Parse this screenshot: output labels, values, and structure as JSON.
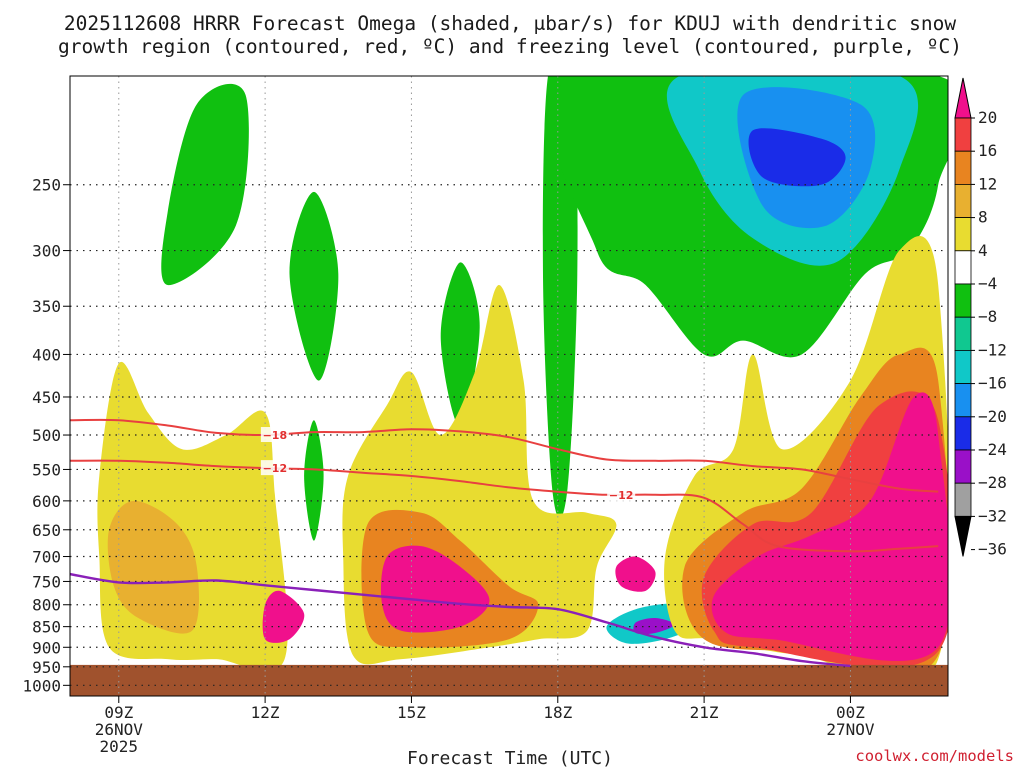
{
  "title": {
    "line1": "2025112608 HRRR Forecast Omega (shaded, μbar/s) for KDUJ with dendritic snow",
    "line2": "growth region (contoured, red, ºC) and freezing level (contoured, purple, ºC)"
  },
  "credit": "coolwx.com/models",
  "chart_data": {
    "type": "time-height cross section",
    "title": "2025112608 HRRR Forecast Omega (shaded, μbar/s) for KDUJ",
    "xlabel": "Forecast Time (UTC)",
    "ylabel": "Pressure (hPa)",
    "x_ticks": [
      {
        "t": 9,
        "lines": [
          "09Z",
          "26NOV",
          "2025"
        ]
      },
      {
        "t": 12,
        "lines": [
          "12Z"
        ]
      },
      {
        "t": 15,
        "lines": [
          "15Z"
        ]
      },
      {
        "t": 18,
        "lines": [
          "18Z"
        ]
      },
      {
        "t": 21,
        "lines": [
          "21Z"
        ]
      },
      {
        "t": 24,
        "lines": [
          "00Z",
          "27NOV"
        ]
      }
    ],
    "xlim": [
      8,
      26
    ],
    "y_ticks": [
      250,
      300,
      350,
      400,
      450,
      500,
      550,
      600,
      650,
      700,
      750,
      800,
      850,
      900,
      950,
      1000
    ],
    "ylim": [
      1030,
      185
    ],
    "ground_pressure": 945,
    "colorbar": {
      "levels": [
        -36,
        -32,
        -28,
        -24,
        -20,
        -16,
        -12,
        -8,
        -4,
        4,
        8,
        12,
        16,
        20
      ],
      "tick_labels": [
        "20",
        "16",
        "12",
        "8",
        "4",
        "−4",
        "−8",
        "−12",
        "−16",
        "−20",
        "−24",
        "−28",
        "−32",
        "−36"
      ],
      "colors": [
        "#000000",
        "#a0a0a0",
        "#9a10c8",
        "#1a2ce8",
        "#1890f0",
        "#10c8c8",
        "#10c890",
        "#10c010",
        "#ffffff",
        "#e8dc30",
        "#e8b030",
        "#e88420",
        "#f04040",
        "#f0108c"
      ]
    },
    "omega_regions": [
      {
        "name": "upper-ascent-1",
        "value": -6,
        "points": [
          [
            10.0,
            270
          ],
          [
            10.6,
            200
          ],
          [
            11.6,
            195
          ],
          [
            11.4,
            280
          ],
          [
            10.0,
            330
          ]
        ]
      },
      {
        "name": "upper-ascent-2",
        "value": -6,
        "points": [
          [
            12.5,
            320
          ],
          [
            13.0,
            255
          ],
          [
            13.5,
            320
          ],
          [
            13.1,
            430
          ]
        ]
      },
      {
        "name": "ascent-column-3",
        "value": -6,
        "points": [
          [
            13.0,
            480
          ],
          [
            13.2,
            560
          ],
          [
            13.0,
            670
          ],
          [
            12.8,
            560
          ]
        ]
      },
      {
        "name": "ascent-column-4",
        "value": -6,
        "points": [
          [
            15.6,
            380
          ],
          [
            16.0,
            310
          ],
          [
            16.4,
            370
          ],
          [
            16.0,
            490
          ]
        ]
      },
      {
        "name": "ascent-column-5",
        "value": -6,
        "points": [
          [
            17.7,
            330
          ],
          [
            17.8,
            185
          ],
          [
            18.3,
            185
          ],
          [
            18.4,
            320
          ],
          [
            18.2,
            580
          ],
          [
            17.9,
            590
          ]
        ]
      },
      {
        "name": "upper-green",
        "value": -6,
        "points": [
          [
            18.3,
            185
          ],
          [
            25.8,
            185
          ],
          [
            25.8,
            250
          ],
          [
            25.2,
            300
          ],
          [
            24.3,
            320
          ],
          [
            23.0,
            400
          ],
          [
            21.8,
            385
          ],
          [
            21.0,
            400
          ],
          [
            19.8,
            330
          ],
          [
            18.8,
            300
          ]
        ]
      },
      {
        "name": "upper-teal",
        "value": -14,
        "points": [
          [
            20.5,
            185
          ],
          [
            25.0,
            185
          ],
          [
            25.0,
            240
          ],
          [
            23.7,
            310
          ],
          [
            22.0,
            290
          ],
          [
            20.9,
            240
          ]
        ]
      },
      {
        "name": "upper-blue",
        "value": -18,
        "points": [
          [
            21.8,
            195
          ],
          [
            24.2,
            200
          ],
          [
            24.4,
            240
          ],
          [
            23.5,
            280
          ],
          [
            22.2,
            265
          ]
        ]
      },
      {
        "name": "upper-core",
        "value": -22,
        "points": [
          [
            22.0,
            215
          ],
          [
            23.4,
            220
          ],
          [
            23.9,
            232
          ],
          [
            23.4,
            250
          ],
          [
            22.2,
            245
          ]
        ]
      },
      {
        "name": "lower-ascent-ring",
        "value": -10,
        "points": [
          [
            10.5,
            720
          ],
          [
            10.8,
            660
          ],
          [
            11.4,
            665
          ],
          [
            11.6,
            760
          ],
          [
            11.5,
            850
          ],
          [
            11.0,
            910
          ],
          [
            10.5,
            860
          ]
        ]
      },
      {
        "name": "lower-ascent-core",
        "value": -34,
        "points": [
          [
            10.7,
            740
          ],
          [
            11.0,
            700
          ],
          [
            11.3,
            710
          ],
          [
            11.4,
            790
          ],
          [
            11.0,
            860
          ],
          [
            10.7,
            820
          ]
        ]
      },
      {
        "name": "lower-ascent-2",
        "value": -14,
        "points": [
          [
            19.0,
            850
          ],
          [
            19.6,
            810
          ],
          [
            20.5,
            800
          ],
          [
            20.7,
            850
          ],
          [
            20.2,
            880
          ],
          [
            19.4,
            890
          ]
        ]
      },
      {
        "name": "lower-ascent-2-core",
        "value": -26,
        "points": [
          [
            19.6,
            840
          ],
          [
            20.0,
            830
          ],
          [
            20.4,
            845
          ],
          [
            20.0,
            865
          ],
          [
            19.6,
            865
          ]
        ]
      },
      {
        "name": "descent-yellow-west",
        "value": 5,
        "points": [
          [
            8.6,
            560
          ],
          [
            9.0,
            410
          ],
          [
            9.6,
            470
          ],
          [
            10.3,
            520
          ],
          [
            11.2,
            500
          ],
          [
            12.0,
            470
          ],
          [
            12.2,
            590
          ],
          [
            12.4,
            930
          ],
          [
            11.0,
            930
          ],
          [
            10.0,
            930
          ],
          [
            8.8,
            900
          ],
          [
            8.6,
            700
          ]
        ]
      },
      {
        "name": "descent-orange-west",
        "value": 10,
        "points": [
          [
            8.8,
            650
          ],
          [
            9.3,
            600
          ],
          [
            10.2,
            640
          ],
          [
            10.6,
            720
          ],
          [
            10.5,
            860
          ],
          [
            9.4,
            830
          ],
          [
            8.9,
            760
          ]
        ]
      },
      {
        "name": "descent-magenta-west",
        "value": 20,
        "points": [
          [
            12.0,
            800
          ],
          [
            12.3,
            770
          ],
          [
            12.8,
            820
          ],
          [
            12.5,
            880
          ],
          [
            12.0,
            880
          ]
        ]
      },
      {
        "name": "descent-yellow-center",
        "value": 5,
        "points": [
          [
            13.7,
            560
          ],
          [
            14.5,
            460
          ],
          [
            15.0,
            420
          ],
          [
            15.6,
            500
          ],
          [
            16.3,
            420
          ],
          [
            16.8,
            330
          ],
          [
            17.3,
            430
          ],
          [
            17.5,
            600
          ],
          [
            18.6,
            620
          ],
          [
            19.2,
            640
          ],
          [
            18.8,
            720
          ],
          [
            18.6,
            860
          ],
          [
            17.6,
            880
          ],
          [
            16.6,
            900
          ],
          [
            14.8,
            930
          ],
          [
            13.8,
            920
          ],
          [
            13.6,
            700
          ]
        ]
      },
      {
        "name": "descent-orange-center",
        "value": 12,
        "points": [
          [
            14.1,
            640
          ],
          [
            15.2,
            620
          ],
          [
            16.0,
            670
          ],
          [
            17.0,
            760
          ],
          [
            17.6,
            800
          ],
          [
            17.0,
            880
          ],
          [
            15.0,
            900
          ],
          [
            14.1,
            860
          ]
        ]
      },
      {
        "name": "descent-magenta-center",
        "value": 20,
        "points": [
          [
            14.5,
            700
          ],
          [
            15.2,
            680
          ],
          [
            16.0,
            720
          ],
          [
            16.6,
            790
          ],
          [
            16.0,
            850
          ],
          [
            14.8,
            860
          ],
          [
            14.4,
            800
          ]
        ]
      },
      {
        "name": "descent-yellow-east",
        "value": 5,
        "points": [
          [
            20.2,
            700
          ],
          [
            20.8,
            560
          ],
          [
            21.6,
            520
          ],
          [
            22.0,
            400
          ],
          [
            22.6,
            520
          ],
          [
            24.0,
            430
          ],
          [
            25.0,
            300
          ],
          [
            25.8,
            330
          ],
          [
            25.8,
            930
          ],
          [
            23.0,
            920
          ],
          [
            21.2,
            880
          ],
          [
            20.4,
            860
          ]
        ]
      },
      {
        "name": "descent-orange-east",
        "value": 12,
        "points": [
          [
            20.6,
            720
          ],
          [
            21.8,
            620
          ],
          [
            23.0,
            580
          ],
          [
            24.2,
            450
          ],
          [
            25.0,
            400
          ],
          [
            25.8,
            430
          ],
          [
            25.8,
            920
          ],
          [
            23.0,
            910
          ],
          [
            21.0,
            880
          ]
        ]
      },
      {
        "name": "descent-red-east",
        "value": 16,
        "points": [
          [
            21.0,
            740
          ],
          [
            22.0,
            640
          ],
          [
            23.2,
            620
          ],
          [
            24.6,
            460
          ],
          [
            25.8,
            480
          ],
          [
            25.8,
            910
          ],
          [
            22.0,
            900
          ],
          [
            21.2,
            860
          ]
        ]
      },
      {
        "name": "descent-magenta-east",
        "value": 20,
        "points": [
          [
            21.2,
            780
          ],
          [
            22.1,
            700
          ],
          [
            23.2,
            660
          ],
          [
            24.4,
            600
          ],
          [
            25.3,
            450
          ],
          [
            25.8,
            500
          ],
          [
            25.8,
            900
          ],
          [
            22.4,
            880
          ],
          [
            21.4,
            860
          ]
        ]
      },
      {
        "name": "descent-magenta-east-2",
        "value": 20,
        "points": [
          [
            19.2,
            720
          ],
          [
            19.6,
            700
          ],
          [
            20.0,
            730
          ],
          [
            19.8,
            770
          ],
          [
            19.3,
            760
          ]
        ]
      }
    ],
    "contours": [
      {
        "name": "dgz-top",
        "label": "−18",
        "color": "#e84040",
        "label_at": 12.2,
        "points": [
          [
            8,
            480
          ],
          [
            9.0,
            480
          ],
          [
            10.0,
            487
          ],
          [
            11.0,
            497
          ],
          [
            12.0,
            500
          ],
          [
            13.0,
            496
          ],
          [
            14.0,
            496
          ],
          [
            15.0,
            492
          ],
          [
            16.0,
            495
          ],
          [
            17.0,
            503
          ],
          [
            18.0,
            520
          ],
          [
            19.0,
            535
          ],
          [
            20.0,
            537
          ],
          [
            21.0,
            537
          ],
          [
            22.0,
            545
          ],
          [
            23.0,
            550
          ],
          [
            24.0,
            565
          ],
          [
            25.0,
            580
          ],
          [
            25.8,
            585
          ]
        ]
      },
      {
        "name": "dgz-bottom",
        "label": "−12",
        "color": "#e84040",
        "label_at": 12.2,
        "points": [
          [
            8,
            537
          ],
          [
            9.0,
            537
          ],
          [
            10.0,
            540
          ],
          [
            11.0,
            545
          ],
          [
            12.0,
            548
          ],
          [
            13.0,
            550
          ],
          [
            14.0,
            555
          ],
          [
            15.0,
            560
          ],
          [
            16.0,
            568
          ],
          [
            17.0,
            578
          ],
          [
            18.0,
            585
          ],
          [
            19.0,
            590
          ],
          [
            20.0,
            590
          ],
          [
            21.0,
            595
          ],
          [
            21.8,
            640
          ],
          [
            22.5,
            680
          ],
          [
            24.0,
            690
          ],
          [
            25.0,
            685
          ],
          [
            25.8,
            680
          ]
        ]
      },
      {
        "name": "freezing-level",
        "label": "0",
        "color": "#8a20b8",
        "label_at": null,
        "points": [
          [
            8,
            735
          ],
          [
            9.0,
            752
          ],
          [
            10.0,
            752
          ],
          [
            11.0,
            748
          ],
          [
            12.0,
            758
          ],
          [
            13.0,
            768
          ],
          [
            14.0,
            778
          ],
          [
            15.0,
            788
          ],
          [
            16.0,
            798
          ],
          [
            17.0,
            805
          ],
          [
            18.0,
            810
          ],
          [
            19.0,
            840
          ],
          [
            20.0,
            875
          ],
          [
            21.0,
            900
          ],
          [
            22.0,
            915
          ],
          [
            23.0,
            935
          ],
          [
            24.0,
            948
          ]
        ]
      }
    ],
    "contour_labels": [
      {
        "text": "−18",
        "t": 12.2,
        "p": 500
      },
      {
        "text": "−12",
        "t": 12.2,
        "p": 548
      },
      {
        "text": "−12",
        "t": 19.3,
        "p": 590
      }
    ]
  }
}
